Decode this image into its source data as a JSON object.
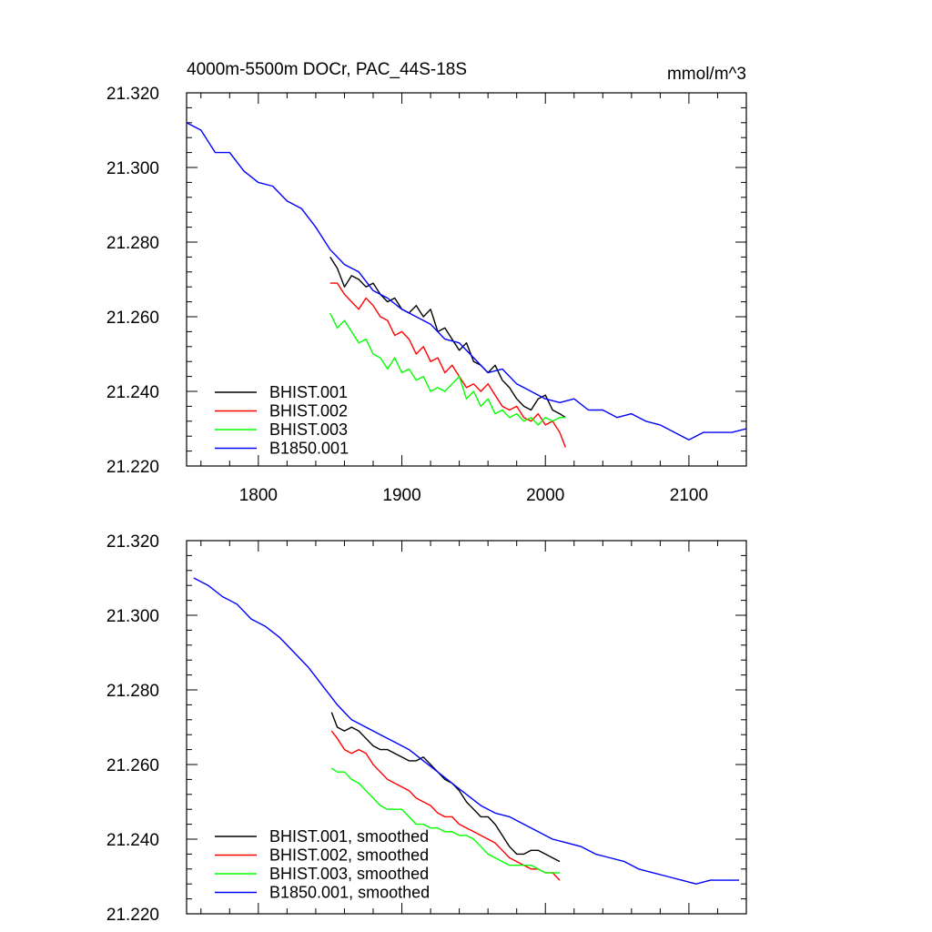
{
  "chart_data": [
    {
      "type": "line",
      "title": "4000m-5500m DOCr, PAC_44S-18S",
      "units": "mmol/m^3",
      "xlim": [
        1750,
        2140
      ],
      "ylim": [
        21.22,
        21.32
      ],
      "xticks": [
        1800,
        1900,
        2000,
        2100
      ],
      "yticks": [
        21.22,
        21.24,
        21.26,
        21.28,
        21.3,
        21.32
      ],
      "xtick_labels": [
        "1800",
        "1900",
        "2000",
        "2100"
      ],
      "ytick_labels": [
        "21.220",
        "21.240",
        "21.260",
        "21.280",
        "21.300",
        "21.320"
      ],
      "legend_position": "bottom-left",
      "series": [
        {
          "name": "BHIST.001",
          "color": "#000000",
          "x": [
            1850,
            1855,
            1860,
            1865,
            1870,
            1875,
            1880,
            1885,
            1890,
            1895,
            1900,
            1905,
            1910,
            1915,
            1920,
            1925,
            1930,
            1935,
            1940,
            1945,
            1950,
            1955,
            1960,
            1965,
            1970,
            1975,
            1980,
            1985,
            1990,
            1995,
            2000,
            2005,
            2010,
            2014
          ],
          "y": [
            21.276,
            21.273,
            21.268,
            21.271,
            21.27,
            21.268,
            21.269,
            21.266,
            21.264,
            21.265,
            21.262,
            21.261,
            21.263,
            21.26,
            21.262,
            21.256,
            21.257,
            21.254,
            21.251,
            21.253,
            21.248,
            21.247,
            21.245,
            21.247,
            21.243,
            21.241,
            21.238,
            21.236,
            21.235,
            21.238,
            21.239,
            21.235,
            21.234,
            21.233
          ]
        },
        {
          "name": "BHIST.002",
          "color": "#ff0000",
          "x": [
            1850,
            1855,
            1860,
            1865,
            1870,
            1875,
            1880,
            1885,
            1890,
            1895,
            1900,
            1905,
            1910,
            1915,
            1920,
            1925,
            1930,
            1935,
            1940,
            1945,
            1950,
            1955,
            1960,
            1965,
            1970,
            1975,
            1980,
            1985,
            1990,
            1995,
            2000,
            2005,
            2010,
            2014
          ],
          "y": [
            21.269,
            21.269,
            21.266,
            21.264,
            21.262,
            21.265,
            21.263,
            21.26,
            21.259,
            21.255,
            21.256,
            21.254,
            21.25,
            21.252,
            21.248,
            21.249,
            21.245,
            21.247,
            21.244,
            21.241,
            21.242,
            21.24,
            21.242,
            21.239,
            21.236,
            21.235,
            21.236,
            21.233,
            21.232,
            21.234,
            21.231,
            21.232,
            21.229,
            21.225
          ]
        },
        {
          "name": "BHIST.003",
          "color": "#00ff00",
          "x": [
            1850,
            1855,
            1860,
            1865,
            1870,
            1875,
            1880,
            1885,
            1890,
            1895,
            1900,
            1905,
            1910,
            1915,
            1920,
            1925,
            1930,
            1935,
            1940,
            1945,
            1950,
            1955,
            1960,
            1965,
            1970,
            1975,
            1980,
            1985,
            1990,
            1995,
            2000,
            2005,
            2010,
            2014
          ],
          "y": [
            21.261,
            21.257,
            21.259,
            21.256,
            21.253,
            21.254,
            21.25,
            21.249,
            21.246,
            21.249,
            21.245,
            21.246,
            21.243,
            21.244,
            21.24,
            21.241,
            21.24,
            21.242,
            21.244,
            21.238,
            21.24,
            21.236,
            21.238,
            21.234,
            21.235,
            21.233,
            21.234,
            21.232,
            21.233,
            21.231,
            21.233,
            21.232,
            21.233,
            21.233
          ]
        },
        {
          "name": "B1850.001",
          "color": "#0000ff",
          "x": [
            1750,
            1760,
            1770,
            1780,
            1790,
            1800,
            1810,
            1820,
            1830,
            1840,
            1850,
            1860,
            1870,
            1880,
            1890,
            1900,
            1910,
            1920,
            1930,
            1940,
            1950,
            1960,
            1970,
            1980,
            1990,
            2000,
            2010,
            2020,
            2030,
            2040,
            2050,
            2060,
            2070,
            2080,
            2090,
            2100,
            2110,
            2120,
            2130,
            2140
          ],
          "y": [
            21.312,
            21.31,
            21.304,
            21.304,
            21.299,
            21.296,
            21.295,
            21.291,
            21.289,
            21.284,
            21.278,
            21.274,
            21.272,
            21.267,
            21.265,
            21.262,
            21.26,
            21.258,
            21.254,
            21.253,
            21.249,
            21.245,
            21.246,
            21.242,
            21.24,
            21.238,
            21.237,
            21.238,
            21.235,
            21.235,
            21.233,
            21.234,
            21.232,
            21.231,
            21.229,
            21.227,
            21.229,
            21.229,
            21.229,
            21.23
          ]
        }
      ]
    },
    {
      "type": "line",
      "xlim": [
        1750,
        2140
      ],
      "ylim": [
        21.22,
        21.32
      ],
      "yticks": [
        21.22,
        21.24,
        21.26,
        21.28,
        21.3,
        21.32
      ],
      "ytick_labels": [
        "21.220",
        "21.240",
        "21.260",
        "21.280",
        "21.300",
        "21.320"
      ],
      "legend_position": "bottom-left",
      "series": [
        {
          "name": "BHIST.001, smoothed",
          "color": "#000000",
          "x": [
            1851,
            1855,
            1860,
            1865,
            1870,
            1875,
            1880,
            1885,
            1890,
            1895,
            1900,
            1905,
            1910,
            1915,
            1920,
            1925,
            1930,
            1935,
            1940,
            1945,
            1950,
            1955,
            1960,
            1965,
            1970,
            1975,
            1980,
            1985,
            1990,
            1995,
            2000,
            2005,
            2010
          ],
          "y": [
            21.274,
            21.27,
            21.269,
            21.27,
            21.269,
            21.267,
            21.265,
            21.264,
            21.264,
            21.263,
            21.262,
            21.261,
            21.261,
            21.262,
            21.26,
            21.258,
            21.256,
            21.255,
            21.253,
            21.25,
            21.248,
            21.246,
            21.246,
            21.244,
            21.241,
            21.238,
            21.236,
            21.236,
            21.237,
            21.237,
            21.236,
            21.235,
            21.234
          ]
        },
        {
          "name": "BHIST.002, smoothed",
          "color": "#ff0000",
          "x": [
            1851,
            1855,
            1860,
            1865,
            1870,
            1875,
            1880,
            1885,
            1890,
            1895,
            1900,
            1905,
            1910,
            1915,
            1920,
            1925,
            1930,
            1935,
            1940,
            1945,
            1950,
            1955,
            1960,
            1965,
            1970,
            1975,
            1980,
            1985,
            1990,
            1995,
            2000,
            2005,
            2010
          ],
          "y": [
            21.269,
            21.267,
            21.264,
            21.263,
            21.264,
            21.263,
            21.26,
            21.258,
            21.256,
            21.255,
            21.254,
            21.253,
            21.251,
            21.25,
            21.249,
            21.247,
            21.246,
            21.246,
            21.244,
            21.243,
            21.242,
            21.241,
            21.24,
            21.239,
            21.237,
            21.235,
            21.234,
            21.233,
            21.232,
            21.232,
            21.231,
            21.231,
            21.229
          ]
        },
        {
          "name": "BHIST.003, smoothed",
          "color": "#00ff00",
          "x": [
            1851,
            1855,
            1860,
            1865,
            1870,
            1875,
            1880,
            1885,
            1890,
            1895,
            1900,
            1905,
            1910,
            1915,
            1920,
            1925,
            1930,
            1935,
            1940,
            1945,
            1950,
            1955,
            1960,
            1965,
            1970,
            1975,
            1980,
            1985,
            1990,
            1995,
            2000,
            2005,
            2010
          ],
          "y": [
            21.259,
            21.258,
            21.258,
            21.256,
            21.255,
            21.253,
            21.251,
            21.249,
            21.248,
            21.248,
            21.248,
            21.246,
            21.244,
            21.244,
            21.243,
            21.243,
            21.242,
            21.242,
            21.241,
            21.241,
            21.24,
            21.238,
            21.236,
            21.235,
            21.234,
            21.233,
            21.233,
            21.233,
            21.233,
            21.232,
            21.231,
            21.231,
            21.231
          ]
        },
        {
          "name": "B1850.001, smoothed",
          "color": "#0000ff",
          "x": [
            1755,
            1765,
            1775,
            1785,
            1795,
            1805,
            1815,
            1825,
            1835,
            1845,
            1855,
            1865,
            1875,
            1885,
            1895,
            1905,
            1915,
            1925,
            1935,
            1945,
            1955,
            1965,
            1975,
            1985,
            1995,
            2005,
            2015,
            2025,
            2035,
            2045,
            2055,
            2065,
            2075,
            2085,
            2095,
            2105,
            2115,
            2125,
            2135
          ],
          "y": [
            21.31,
            21.308,
            21.305,
            21.303,
            21.299,
            21.297,
            21.294,
            21.29,
            21.286,
            21.281,
            21.276,
            21.272,
            21.27,
            21.268,
            21.266,
            21.264,
            21.261,
            21.258,
            21.255,
            21.252,
            21.249,
            21.247,
            21.246,
            21.244,
            21.242,
            21.24,
            21.239,
            21.238,
            21.236,
            21.235,
            21.234,
            21.232,
            21.231,
            21.23,
            21.229,
            21.228,
            21.229,
            21.229,
            21.229
          ]
        }
      ]
    }
  ]
}
